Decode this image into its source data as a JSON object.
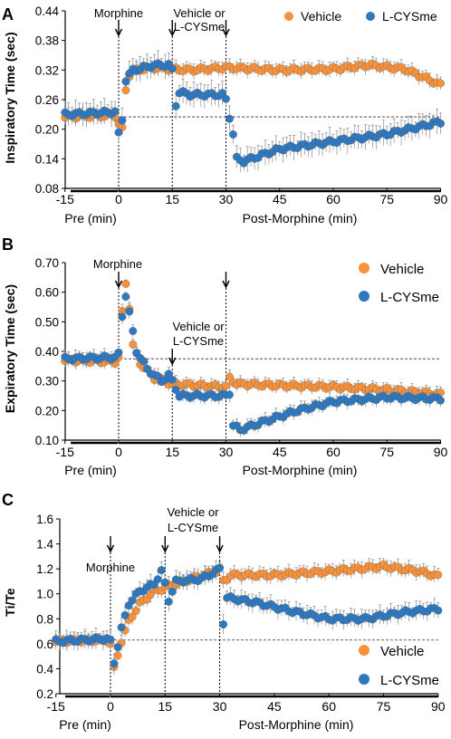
{
  "legend_labels": {
    "vehicle": "Vehicle",
    "lcys": "L-CYSme"
  },
  "colors": {
    "vehicle": "#f7913b",
    "lcys": "#2e78bf",
    "err": "#8c8c8c"
  },
  "x_axis": {
    "ticks": [
      -15,
      0,
      15,
      30,
      45,
      60,
      75,
      90
    ],
    "pre_label": "Pre (min)",
    "post_label": "Post-Morphine (min)"
  },
  "chart_data": [
    {
      "panel": "A",
      "type": "line",
      "ylabel": "Inspiratory Time (sec)",
      "ylim": [
        0.08,
        0.44
      ],
      "yticks": [
        "0.08",
        "0.14",
        "0.20",
        "0.26",
        "0.32",
        "0.38",
        "0.44"
      ],
      "xlim": [
        -15,
        90
      ],
      "baseline": 0.225,
      "annotations": [
        {
          "text": "Morphine",
          "x": 0
        },
        {
          "text": "Vehicle or",
          "x": 15
        },
        {
          "text": "L-CYSme",
          "x": 15
        },
        {
          "text": "",
          "x": 30
        }
      ],
      "legend_position": "top-right",
      "series_key": [
        "vehicle",
        "lcys"
      ],
      "vehicle_keys": [
        [
          -15,
          0.225
        ],
        [
          -1,
          0.228
        ],
        [
          0,
          0.21
        ],
        [
          0.5,
          0.16
        ],
        [
          1,
          0.2
        ],
        [
          2,
          0.28
        ],
        [
          3,
          0.31
        ],
        [
          5,
          0.32
        ],
        [
          10,
          0.325
        ],
        [
          15,
          0.322
        ],
        [
          20,
          0.32
        ],
        [
          30,
          0.325
        ],
        [
          45,
          0.32
        ],
        [
          60,
          0.322
        ],
        [
          70,
          0.33
        ],
        [
          80,
          0.322
        ],
        [
          90,
          0.29
        ]
      ],
      "vehicle_err": 0.012,
      "lcys_keys": [
        [
          -15,
          0.23
        ],
        [
          -1,
          0.235
        ],
        [
          0,
          0.19
        ],
        [
          0.5,
          0.14
        ],
        [
          1,
          0.22
        ],
        [
          2,
          0.3
        ],
        [
          4,
          0.32
        ],
        [
          10,
          0.33
        ],
        [
          14,
          0.33
        ],
        [
          15,
          0.32
        ],
        [
          16,
          0.25
        ],
        [
          17,
          0.275
        ],
        [
          20,
          0.27
        ],
        [
          29,
          0.27
        ],
        [
          30,
          0.26
        ],
        [
          32,
          0.19
        ],
        [
          33,
          0.14
        ],
        [
          35,
          0.135
        ],
        [
          45,
          0.16
        ],
        [
          60,
          0.175
        ],
        [
          75,
          0.19
        ],
        [
          90,
          0.215
        ]
      ],
      "lcys_err": 0.02
    },
    {
      "panel": "B",
      "type": "line",
      "ylabel": "Expiratory Time (sec)",
      "ylim": [
        0.1,
        0.7
      ],
      "yticks": [
        "0.10",
        "0.20",
        "0.30",
        "0.40",
        "0.50",
        "0.60",
        "0.70"
      ],
      "xlim": [
        -15,
        90
      ],
      "baseline": 0.375,
      "annotations": [
        {
          "text": "Morphine",
          "x": 0
        },
        {
          "text": "Vehicle or",
          "x": 15
        },
        {
          "text": "L-CYSme",
          "x": 15
        },
        {
          "text": "",
          "x": 30
        }
      ],
      "legend_position": "top-right",
      "series_key": [
        "vehicle",
        "lcys"
      ],
      "vehicle_keys": [
        [
          -15,
          0.37
        ],
        [
          -1,
          0.365
        ],
        [
          0,
          0.38
        ],
        [
          1,
          0.53
        ],
        [
          2,
          0.63
        ],
        [
          3,
          0.55
        ],
        [
          4,
          0.42
        ],
        [
          6,
          0.36
        ],
        [
          10,
          0.31
        ],
        [
          15,
          0.29
        ],
        [
          30,
          0.28
        ],
        [
          31,
          0.31
        ],
        [
          33,
          0.29
        ],
        [
          45,
          0.285
        ],
        [
          60,
          0.28
        ],
        [
          75,
          0.27
        ],
        [
          90,
          0.255
        ]
      ],
      "vehicle_err": 0.018,
      "lcys_keys": [
        [
          -15,
          0.375
        ],
        [
          -1,
          0.38
        ],
        [
          0,
          0.39
        ],
        [
          1,
          0.52
        ],
        [
          2,
          0.59
        ],
        [
          3,
          0.53
        ],
        [
          5,
          0.4
        ],
        [
          8,
          0.34
        ],
        [
          12,
          0.3
        ],
        [
          14,
          0.32
        ],
        [
          15,
          0.3
        ],
        [
          17,
          0.25
        ],
        [
          30,
          0.25
        ],
        [
          31,
          0.26
        ],
        [
          32,
          0.15
        ],
        [
          34,
          0.135
        ],
        [
          40,
          0.16
        ],
        [
          50,
          0.2
        ],
        [
          60,
          0.23
        ],
        [
          75,
          0.245
        ],
        [
          90,
          0.24
        ]
      ],
      "lcys_err": 0.02
    },
    {
      "panel": "C",
      "type": "line",
      "ylabel": "Ti/Te",
      "ylim": [
        0.2,
        1.6
      ],
      "yticks": [
        "0.2",
        "0.4",
        "0.6",
        "0.8",
        "1.0",
        "1.2",
        "1.4",
        "1.6"
      ],
      "xlim": [
        -15,
        90
      ],
      "baseline": 0.63,
      "annotations": [
        {
          "text": "Morphine",
          "x": 0
        },
        {
          "text": "Vehicle or",
          "x": 15
        },
        {
          "text": "L-CYSme",
          "x": 15
        },
        {
          "text": "",
          "x": 30
        }
      ],
      "legend_position": "bottom-right",
      "series_key": [
        "vehicle",
        "lcys"
      ],
      "vehicle_keys": [
        [
          -15,
          0.62
        ],
        [
          -1,
          0.63
        ],
        [
          0,
          0.6
        ],
        [
          0.5,
          0.33
        ],
        [
          1,
          0.4
        ],
        [
          3,
          0.62
        ],
        [
          5,
          0.78
        ],
        [
          8,
          0.92
        ],
        [
          12,
          1.02
        ],
        [
          15,
          1.05
        ],
        [
          20,
          1.1
        ],
        [
          29,
          1.18
        ],
        [
          30,
          1.2
        ],
        [
          31,
          1.1
        ],
        [
          33,
          1.15
        ],
        [
          45,
          1.15
        ],
        [
          60,
          1.18
        ],
        [
          75,
          1.22
        ],
        [
          85,
          1.18
        ],
        [
          90,
          1.14
        ]
      ],
      "vehicle_err": 0.05,
      "lcys_keys": [
        [
          -15,
          0.62
        ],
        [
          -1,
          0.64
        ],
        [
          0,
          0.62
        ],
        [
          0.5,
          0.38
        ],
        [
          1,
          0.45
        ],
        [
          3,
          0.72
        ],
        [
          5,
          0.92
        ],
        [
          8,
          1.02
        ],
        [
          12,
          1.08
        ],
        [
          14,
          1.18
        ],
        [
          15,
          1.08
        ],
        [
          16,
          0.95
        ],
        [
          18,
          1.1
        ],
        [
          25,
          1.12
        ],
        [
          29,
          1.18
        ],
        [
          30,
          1.2
        ],
        [
          31,
          0.77
        ],
        [
          32,
          0.97
        ],
        [
          40,
          0.93
        ],
        [
          50,
          0.86
        ],
        [
          60,
          0.8
        ],
        [
          70,
          0.8
        ],
        [
          80,
          0.85
        ],
        [
          90,
          0.88
        ]
      ],
      "lcys_err": 0.06
    }
  ]
}
